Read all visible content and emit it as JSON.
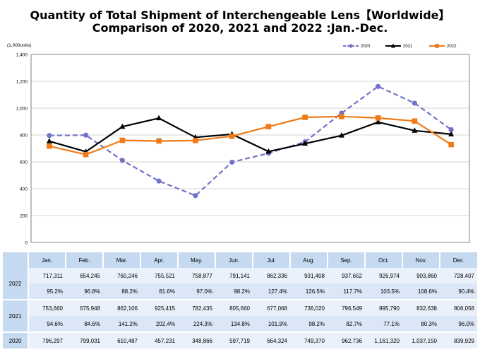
{
  "title_line1": "Quantity of Total Shipment of Interchengeable Lens【Worldwide】",
  "title_line2": "Comparison of 2020, 2021 and 2022 :Jan.-Dec.",
  "chart_data": {
    "type": "line",
    "unit_label": "(1,000units)",
    "categories": [
      "Jan.",
      "Feb.",
      "Mar.",
      "Apr.",
      "May.",
      "Jun.",
      "Jul.",
      "Aug.",
      "Sep.",
      "Oct.",
      "Nov.",
      "Dec."
    ],
    "ylim": [
      0,
      1400
    ],
    "yticks": [
      0,
      200,
      400,
      600,
      800,
      1000,
      1200,
      1400
    ],
    "ytick_labels": [
      "0",
      "200",
      "400",
      "600",
      "800",
      "1,000",
      "1,200",
      "1,400"
    ],
    "series": [
      {
        "name": "2020",
        "color": "#7272c8",
        "marker": "circle",
        "dashed": true,
        "values": [
          796.297,
          799.031,
          610.487,
          457.231,
          348.866,
          597.719,
          664.324,
          749.37,
          962.736,
          1161.32,
          1037.15,
          839.929
        ]
      },
      {
        "name": "2021",
        "color": "#000000",
        "marker": "triangle",
        "dashed": false,
        "values": [
          753.66,
          675.948,
          862.106,
          925.415,
          782.435,
          805.66,
          677.068,
          736.02,
          796.549,
          895.79,
          832.638,
          806.058
        ]
      },
      {
        "name": "2022",
        "color": "#f07a18",
        "marker": "square",
        "dashed": false,
        "values": [
          717.311,
          654.245,
          760.246,
          755.521,
          758.877,
          791.141,
          862.336,
          931.408,
          937.652,
          926.974,
          903.86,
          728.407
        ]
      }
    ]
  },
  "table": {
    "months": [
      "Jan.",
      "Feb.",
      "Mar.",
      "Apr.",
      "May.",
      "Jun.",
      "Jul.",
      "Aug.",
      "Sep.",
      "Oct.",
      "Nov.",
      "Dec."
    ],
    "rows": [
      {
        "year": "2022",
        "units": [
          "717,311",
          "654,245",
          "760,246",
          "755,521",
          "758,877",
          "791,141",
          "862,336",
          "931,408",
          "937,652",
          "926,974",
          "903,860",
          "728,407"
        ],
        "pct": [
          "95.2%",
          "96.8%",
          "88.2%",
          "81.6%",
          "97.0%",
          "98.2%",
          "127.4%",
          "126.5%",
          "117.7%",
          "103.5%",
          "108.6%",
          "90.4%"
        ]
      },
      {
        "year": "2021",
        "units": [
          "753,660",
          "675,948",
          "862,106",
          "925,415",
          "782,435",
          "805,660",
          "677,068",
          "736,020",
          "796,549",
          "895,790",
          "832,638",
          "806,058"
        ],
        "pct": [
          "94.6%",
          "84.6%",
          "141.2%",
          "202.4%",
          "224.3%",
          "134.8%",
          "101.9%",
          "98.2%",
          "82.7%",
          "77.1%",
          "80.3%",
          "96.0%"
        ]
      },
      {
        "year": "2020",
        "units": [
          "796,297",
          "799,031",
          "610,487",
          "457,231",
          "348,866",
          "597,719",
          "664,324",
          "749,370",
          "962,736",
          "1,161,320",
          "1,037,150",
          "839,929"
        ],
        "pct": []
      }
    ]
  }
}
